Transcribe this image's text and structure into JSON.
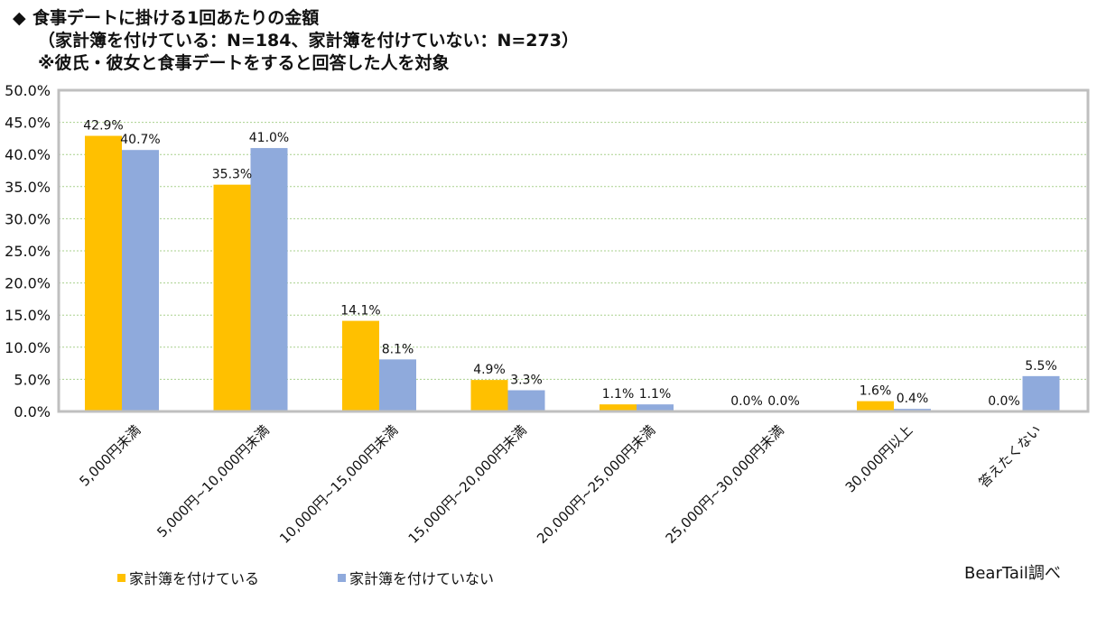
{
  "header": {
    "bullet": "◆",
    "title_line1": "食事デートに掛ける1回あたりの金額",
    "title_line2": "（家計簿を付けている：N=184、家計簿を付けていない：N=273）",
    "title_line3": "※彼氏・彼女と食事デートをすると回答した人を対象"
  },
  "chart_data": {
    "type": "bar",
    "categories": [
      "5,000円未満",
      "5,000円~10,000円未満",
      "10,000円~15,000円未満",
      "15,000円~20,000円未満",
      "20,000円~25,000円未満",
      "25,000円~30,000円未満",
      "30,000円以上",
      "答えたくない"
    ],
    "series": [
      {
        "name": "家計簿を付けている",
        "values": [
          42.9,
          35.3,
          14.1,
          4.9,
          1.1,
          0.0,
          1.6,
          0.0
        ],
        "color": "#FFC000"
      },
      {
        "name": "家計簿を付けていない",
        "values": [
          40.7,
          41.0,
          8.1,
          3.3,
          1.1,
          0.0,
          0.4,
          5.5
        ],
        "color": "#8FAADC"
      }
    ],
    "ylim": [
      0,
      50
    ],
    "yticks": [
      0,
      5,
      10,
      15,
      20,
      25,
      30,
      35,
      40,
      45,
      50
    ],
    "ytick_format": "percent_1dp",
    "grid": true,
    "grid_color": "#A9D18E",
    "legend_position": "bottom-left"
  },
  "source": "BearTail調べ"
}
